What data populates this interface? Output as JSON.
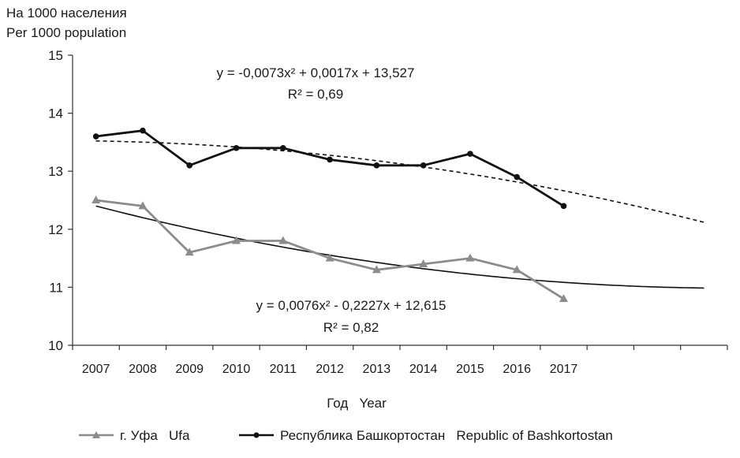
{
  "chart_data": {
    "type": "line",
    "ylabel": [
      "На 1000 населения",
      "Per 1000 population"
    ],
    "xlabel": "Год   Year",
    "categories": [
      "2007",
      "2008",
      "2009",
      "2010",
      "2011",
      "2012",
      "2013",
      "2014",
      "2015",
      "2016",
      "2017"
    ],
    "ylim": [
      10,
      15
    ],
    "yticks": [
      "10",
      "11",
      "12",
      "13",
      "14",
      "15"
    ],
    "extra_trend_slots": 3,
    "series": [
      {
        "name": "г. Уфа   Ufa",
        "color": "#8c8c8c",
        "marker": "triangle",
        "values": [
          12.5,
          12.4,
          11.6,
          11.8,
          11.8,
          11.5,
          11.3,
          11.4,
          11.5,
          11.3,
          10.8
        ],
        "trend": {
          "type": "poly2",
          "a": 0.0076,
          "b": -0.2227,
          "c": 12.615,
          "style": "solid",
          "equation": "y = 0,0076x² - 0,2227x + 12,615",
          "r2": "R² = 0,82"
        }
      },
      {
        "name": "Республика Башкортостан   Republic of Bashkortostan",
        "color": "#111111",
        "marker": "circle",
        "values": [
          13.6,
          13.7,
          13.1,
          13.4,
          13.4,
          13.2,
          13.1,
          13.1,
          13.3,
          12.9,
          12.4
        ],
        "trend": {
          "type": "poly2",
          "a": -0.0073,
          "b": 0.0017,
          "c": 13.527,
          "style": "dashed",
          "equation": "y = -0,0073x² + 0,0017x + 13,527",
          "r2": "R² = 0,69"
        }
      }
    ]
  }
}
